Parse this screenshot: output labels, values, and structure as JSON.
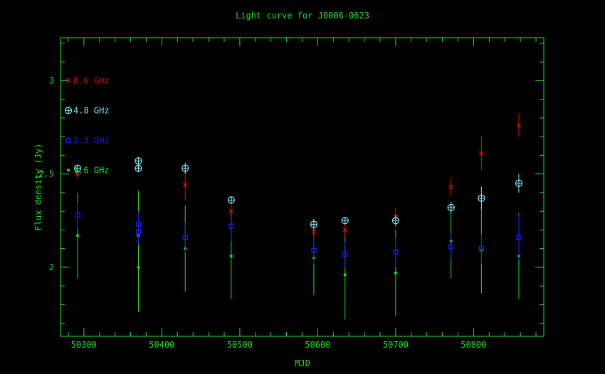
{
  "chart_data": {
    "type": "scatter",
    "title": "Light curve for J0006-0623",
    "xlabel": "MJD",
    "ylabel": "Flux density (Jy)",
    "xlim": [
      50270,
      50890
    ],
    "ylim": [
      1.63,
      3.23
    ],
    "x_ticks": [
      50300,
      50400,
      50500,
      50600,
      50700,
      50800
    ],
    "y_ticks": [
      2,
      2.5,
      3
    ],
    "grid": false,
    "legend_position": "top-left",
    "series": [
      {
        "name": "8.6 GHz",
        "color": "#e01010",
        "marker": "cross",
        "points": [
          {
            "x": 50292,
            "y": 2.5,
            "err": 0.03
          },
          {
            "x": 50370,
            "y": 2.54,
            "err": 0.03
          },
          {
            "x": 50430,
            "y": 2.44,
            "err": 0.08
          },
          {
            "x": 50489,
            "y": 2.3,
            "err": 0.04
          },
          {
            "x": 50595,
            "y": 2.19,
            "err": 0.04
          },
          {
            "x": 50635,
            "y": 2.2,
            "err": 0.04
          },
          {
            "x": 50700,
            "y": 2.27,
            "err": 0.05
          },
          {
            "x": 50771,
            "y": 2.43,
            "err": 0.05
          },
          {
            "x": 50810,
            "y": 2.61,
            "err": 0.09
          },
          {
            "x": 50858,
            "y": 2.76,
            "err": 0.06
          }
        ]
      },
      {
        "name": "4.8 GHz",
        "color": "#7fe6f0",
        "marker": "circle-plus",
        "points": [
          {
            "x": 50292,
            "y": 2.53,
            "err": 0.02
          },
          {
            "x": 50370,
            "y": 2.57,
            "err": 0.02
          },
          {
            "x": 50370,
            "y": 2.53,
            "err": 0.02
          },
          {
            "x": 50430,
            "y": 2.53,
            "err": 0.03
          },
          {
            "x": 50489,
            "y": 2.36,
            "err": 0.02
          },
          {
            "x": 50595,
            "y": 2.23,
            "err": 0.03
          },
          {
            "x": 50635,
            "y": 2.25,
            "err": 0.02
          },
          {
            "x": 50700,
            "y": 2.25,
            "err": 0.03
          },
          {
            "x": 50771,
            "y": 2.32,
            "err": 0.03
          },
          {
            "x": 50810,
            "y": 2.37,
            "err": 0.06
          },
          {
            "x": 50858,
            "y": 2.45,
            "err": 0.05
          }
        ]
      },
      {
        "name": "2.3 GHz",
        "color": "#1c1cf0",
        "marker": "square",
        "points": [
          {
            "x": 50292,
            "y": 2.28,
            "err": 0.07
          },
          {
            "x": 50370,
            "y": 2.23,
            "err": 0.07
          },
          {
            "x": 50370,
            "y": 2.19,
            "err": 0.07
          },
          {
            "x": 50430,
            "y": 2.16,
            "err": 0.08
          },
          {
            "x": 50489,
            "y": 2.22,
            "err": 0.08
          },
          {
            "x": 50595,
            "y": 2.09,
            "err": 0.07
          },
          {
            "x": 50635,
            "y": 2.07,
            "err": 0.07
          },
          {
            "x": 50700,
            "y": 2.08,
            "err": 0.08
          },
          {
            "x": 50771,
            "y": 2.11,
            "err": 0.07
          },
          {
            "x": 50810,
            "y": 2.1,
            "err": 0.08
          },
          {
            "x": 50858,
            "y": 2.16,
            "err": 0.12
          }
        ]
      },
      {
        "name": "1.6 GHz",
        "color": "#22e022",
        "marker": "dot",
        "points": [
          {
            "x": 50292,
            "y": 2.17,
            "err": 0.23
          },
          {
            "x": 50370,
            "y": 2.17,
            "err": 0.24
          },
          {
            "x": 50370,
            "y": 2.0,
            "err": 0.24
          },
          {
            "x": 50430,
            "y": 2.1,
            "err": 0.23
          },
          {
            "x": 50489,
            "y": 2.06,
            "err": 0.23
          },
          {
            "x": 50595,
            "y": 2.05,
            "err": 0.2
          },
          {
            "x": 50635,
            "y": 1.96,
            "err": 0.24
          },
          {
            "x": 50700,
            "y": 1.97,
            "err": 0.23
          },
          {
            "x": 50771,
            "y": 2.14,
            "err": 0.2
          },
          {
            "x": 50810,
            "y": 2.09,
            "err": 0.23
          },
          {
            "x": 50858,
            "y": 2.06,
            "err": 0.23
          }
        ]
      }
    ]
  },
  "colors": {
    "axis": "#22e022",
    "title": "#22e022",
    "background": "#000000"
  }
}
